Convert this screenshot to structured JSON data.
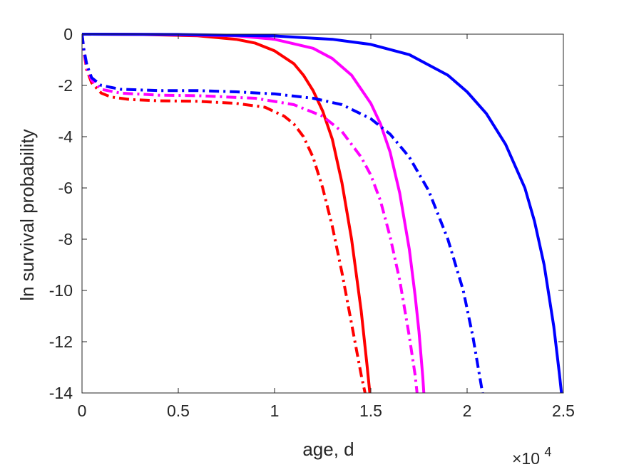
{
  "chart_data": {
    "type": "line",
    "title": "",
    "xlabel": "age, d",
    "ylabel": "ln survival probability",
    "x_multiplier_label": "×10",
    "x_multiplier_exponent": "4",
    "xlim": [
      0,
      25000
    ],
    "ylim": [
      -14,
      0
    ],
    "grid": false,
    "legend": "none",
    "x_ticks": [
      0,
      5000,
      10000,
      15000,
      20000,
      25000
    ],
    "x_tick_labels": [
      "0",
      "0.5",
      "1",
      "1.5",
      "2",
      "2.5"
    ],
    "y_ticks": [
      0,
      -2,
      -4,
      -6,
      -8,
      -10,
      -12,
      -14
    ],
    "y_tick_labels": [
      "0",
      "-2",
      "-4",
      "-6",
      "-8",
      "-10",
      "-12",
      "-14"
    ],
    "series": [
      {
        "color": "#ff0000",
        "style": "solid",
        "points": [
          [
            0,
            0
          ],
          [
            3000,
            -0.01
          ],
          [
            6000,
            -0.06
          ],
          [
            8000,
            -0.2
          ],
          [
            9000,
            -0.35
          ],
          [
            10000,
            -0.65
          ],
          [
            11000,
            -1.15
          ],
          [
            11500,
            -1.6
          ],
          [
            12000,
            -2.2
          ],
          [
            12500,
            -3.0
          ],
          [
            13000,
            -4.1
          ],
          [
            13500,
            -5.8
          ],
          [
            14000,
            -8.0
          ],
          [
            14500,
            -10.8
          ],
          [
            14800,
            -12.9
          ],
          [
            14950,
            -14
          ]
        ]
      },
      {
        "color": "#ff00ff",
        "style": "solid",
        "points": [
          [
            0,
            0
          ],
          [
            4000,
            -0.01
          ],
          [
            8000,
            -0.06
          ],
          [
            10000,
            -0.2
          ],
          [
            12000,
            -0.55
          ],
          [
            13000,
            -0.95
          ],
          [
            14000,
            -1.6
          ],
          [
            15000,
            -2.7
          ],
          [
            15500,
            -3.5
          ],
          [
            16000,
            -4.6
          ],
          [
            16500,
            -6.2
          ],
          [
            17000,
            -8.4
          ],
          [
            17300,
            -10.2
          ],
          [
            17500,
            -11.6
          ],
          [
            17700,
            -13.4
          ],
          [
            17750,
            -14
          ]
        ]
      },
      {
        "color": "#0000ff",
        "style": "solid",
        "points": [
          [
            0,
            0
          ],
          [
            5000,
            -0.01
          ],
          [
            10000,
            -0.07
          ],
          [
            13000,
            -0.2
          ],
          [
            15000,
            -0.4
          ],
          [
            17000,
            -0.8
          ],
          [
            19000,
            -1.6
          ],
          [
            20000,
            -2.25
          ],
          [
            21000,
            -3.1
          ],
          [
            22000,
            -4.3
          ],
          [
            23000,
            -6.0
          ],
          [
            23500,
            -7.3
          ],
          [
            24000,
            -9.0
          ],
          [
            24500,
            -11.4
          ],
          [
            24800,
            -13.3
          ],
          [
            24900,
            -14
          ]
        ]
      },
      {
        "color": "#ff0000",
        "style": "dashdot",
        "points": [
          [
            0,
            0
          ],
          [
            100,
            -0.7
          ],
          [
            250,
            -1.4
          ],
          [
            500,
            -1.9
          ],
          [
            1000,
            -2.3
          ],
          [
            1500,
            -2.45
          ],
          [
            2500,
            -2.55
          ],
          [
            4000,
            -2.6
          ],
          [
            6000,
            -2.62
          ],
          [
            8000,
            -2.7
          ],
          [
            9500,
            -2.85
          ],
          [
            10500,
            -3.2
          ],
          [
            11000,
            -3.5
          ],
          [
            11500,
            -4.0
          ],
          [
            12000,
            -4.8
          ],
          [
            12500,
            -6.0
          ],
          [
            13000,
            -7.5
          ],
          [
            13500,
            -9.3
          ],
          [
            14000,
            -11.3
          ],
          [
            14500,
            -13.3
          ],
          [
            14700,
            -14
          ]
        ]
      },
      {
        "color": "#ff00ff",
        "style": "dashdot",
        "points": [
          [
            0,
            0
          ],
          [
            100,
            -0.65
          ],
          [
            250,
            -1.3
          ],
          [
            500,
            -1.8
          ],
          [
            1000,
            -2.15
          ],
          [
            2000,
            -2.3
          ],
          [
            4000,
            -2.38
          ],
          [
            6000,
            -2.4
          ],
          [
            9000,
            -2.5
          ],
          [
            11000,
            -2.75
          ],
          [
            12500,
            -3.2
          ],
          [
            13500,
            -3.8
          ],
          [
            14500,
            -4.8
          ],
          [
            15000,
            -5.5
          ],
          [
            15500,
            -6.5
          ],
          [
            16000,
            -7.9
          ],
          [
            16500,
            -9.6
          ],
          [
            17000,
            -11.8
          ],
          [
            17300,
            -13.3
          ],
          [
            17400,
            -14
          ]
        ]
      },
      {
        "color": "#0000ff",
        "style": "dashdot",
        "points": [
          [
            0,
            0
          ],
          [
            100,
            -0.6
          ],
          [
            250,
            -1.2
          ],
          [
            500,
            -1.7
          ],
          [
            1000,
            -2.0
          ],
          [
            2000,
            -2.15
          ],
          [
            4000,
            -2.2
          ],
          [
            6000,
            -2.2
          ],
          [
            8000,
            -2.25
          ],
          [
            10000,
            -2.33
          ],
          [
            12000,
            -2.5
          ],
          [
            13500,
            -2.75
          ],
          [
            15000,
            -3.3
          ],
          [
            16000,
            -3.9
          ],
          [
            17000,
            -4.8
          ],
          [
            18000,
            -6.1
          ],
          [
            19000,
            -8.0
          ],
          [
            19800,
            -10.0
          ],
          [
            20300,
            -11.8
          ],
          [
            20800,
            -14
          ]
        ]
      }
    ]
  }
}
